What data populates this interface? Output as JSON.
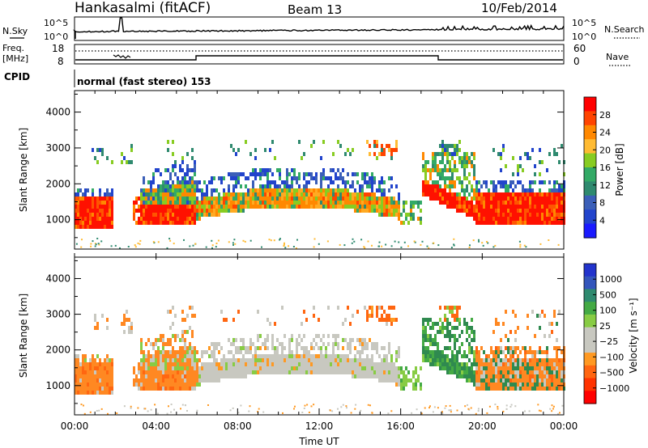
{
  "header": {
    "title": "Hankasalmi (fitACF)",
    "beam": "Beam 13",
    "date": "10/Feb/2014"
  },
  "top_panel": {
    "left_label": "N.Sky",
    "left_ticks": [
      "10^5",
      "10^0"
    ],
    "right_ticks": [
      "10^5",
      "10^0"
    ],
    "right_label": "N.Search"
  },
  "freq_panel": {
    "left_label_line1": "Freq.",
    "left_label_line2": "[MHz]",
    "left_ticks": [
      "18",
      "8"
    ],
    "right_ticks": [
      "60",
      "0"
    ],
    "right_label": "Nave"
  },
  "cpid_panel": {
    "label": "CPID",
    "mode_text": "normal (fast stereo) 153"
  },
  "chart_data": [
    {
      "type": "heatmap",
      "title": "",
      "ylabel": "Slant Range [km]",
      "y_ticks": [
        "4000",
        "3000",
        "2000",
        "1000"
      ],
      "ylim": [
        180,
        4600
      ],
      "xlim_hours": [
        0,
        24
      ],
      "colorbar_label": "Power [dB]",
      "colorbar_ticks": [
        "28",
        "24",
        "20",
        "16",
        "12",
        "8",
        "4"
      ],
      "colorbar_colors": [
        "#ff0000",
        "#ff4400",
        "#ff8800",
        "#ffbb33",
        "#88cc22",
        "#33aa66",
        "#2f8a6f",
        "#3b5fb8",
        "#2244cc",
        "#1a1aff"
      ]
    },
    {
      "type": "heatmap",
      "title": "",
      "ylabel": "Slant Range [km]",
      "y_ticks": [
        "4000",
        "3000",
        "2000",
        "1000"
      ],
      "ylim": [
        180,
        4600
      ],
      "xlim_hours": [
        0,
        24
      ],
      "colorbar_label": "Velocity [m s⁻¹]",
      "colorbar_ticks": [
        "1000",
        "500",
        "100",
        "25",
        "−25",
        "−100",
        "−500",
        "−1000"
      ],
      "colorbar_colors": [
        "#2233cc",
        "#3355bb",
        "#2f8a6f",
        "#44aa44",
        "#88cc44",
        "#c8c8c0",
        "#c8c8c0",
        "#ff9922",
        "#ff6611",
        "#ff3300",
        "#ff0000"
      ]
    }
  ],
  "x_axis": {
    "ticks": [
      "00:00",
      "04:00",
      "08:00",
      "12:00",
      "16:00",
      "20:00",
      "00:00"
    ],
    "label": "Time UT"
  },
  "colors": {
    "power_red": "#ff0000",
    "power_orange": "#ff8800",
    "power_green": "#33aa66",
    "power_blue": "#2244cc",
    "vel_grey": "#c8c8c0",
    "vel_orange": "#ff8822",
    "vel_green": "#2f8a4f"
  }
}
